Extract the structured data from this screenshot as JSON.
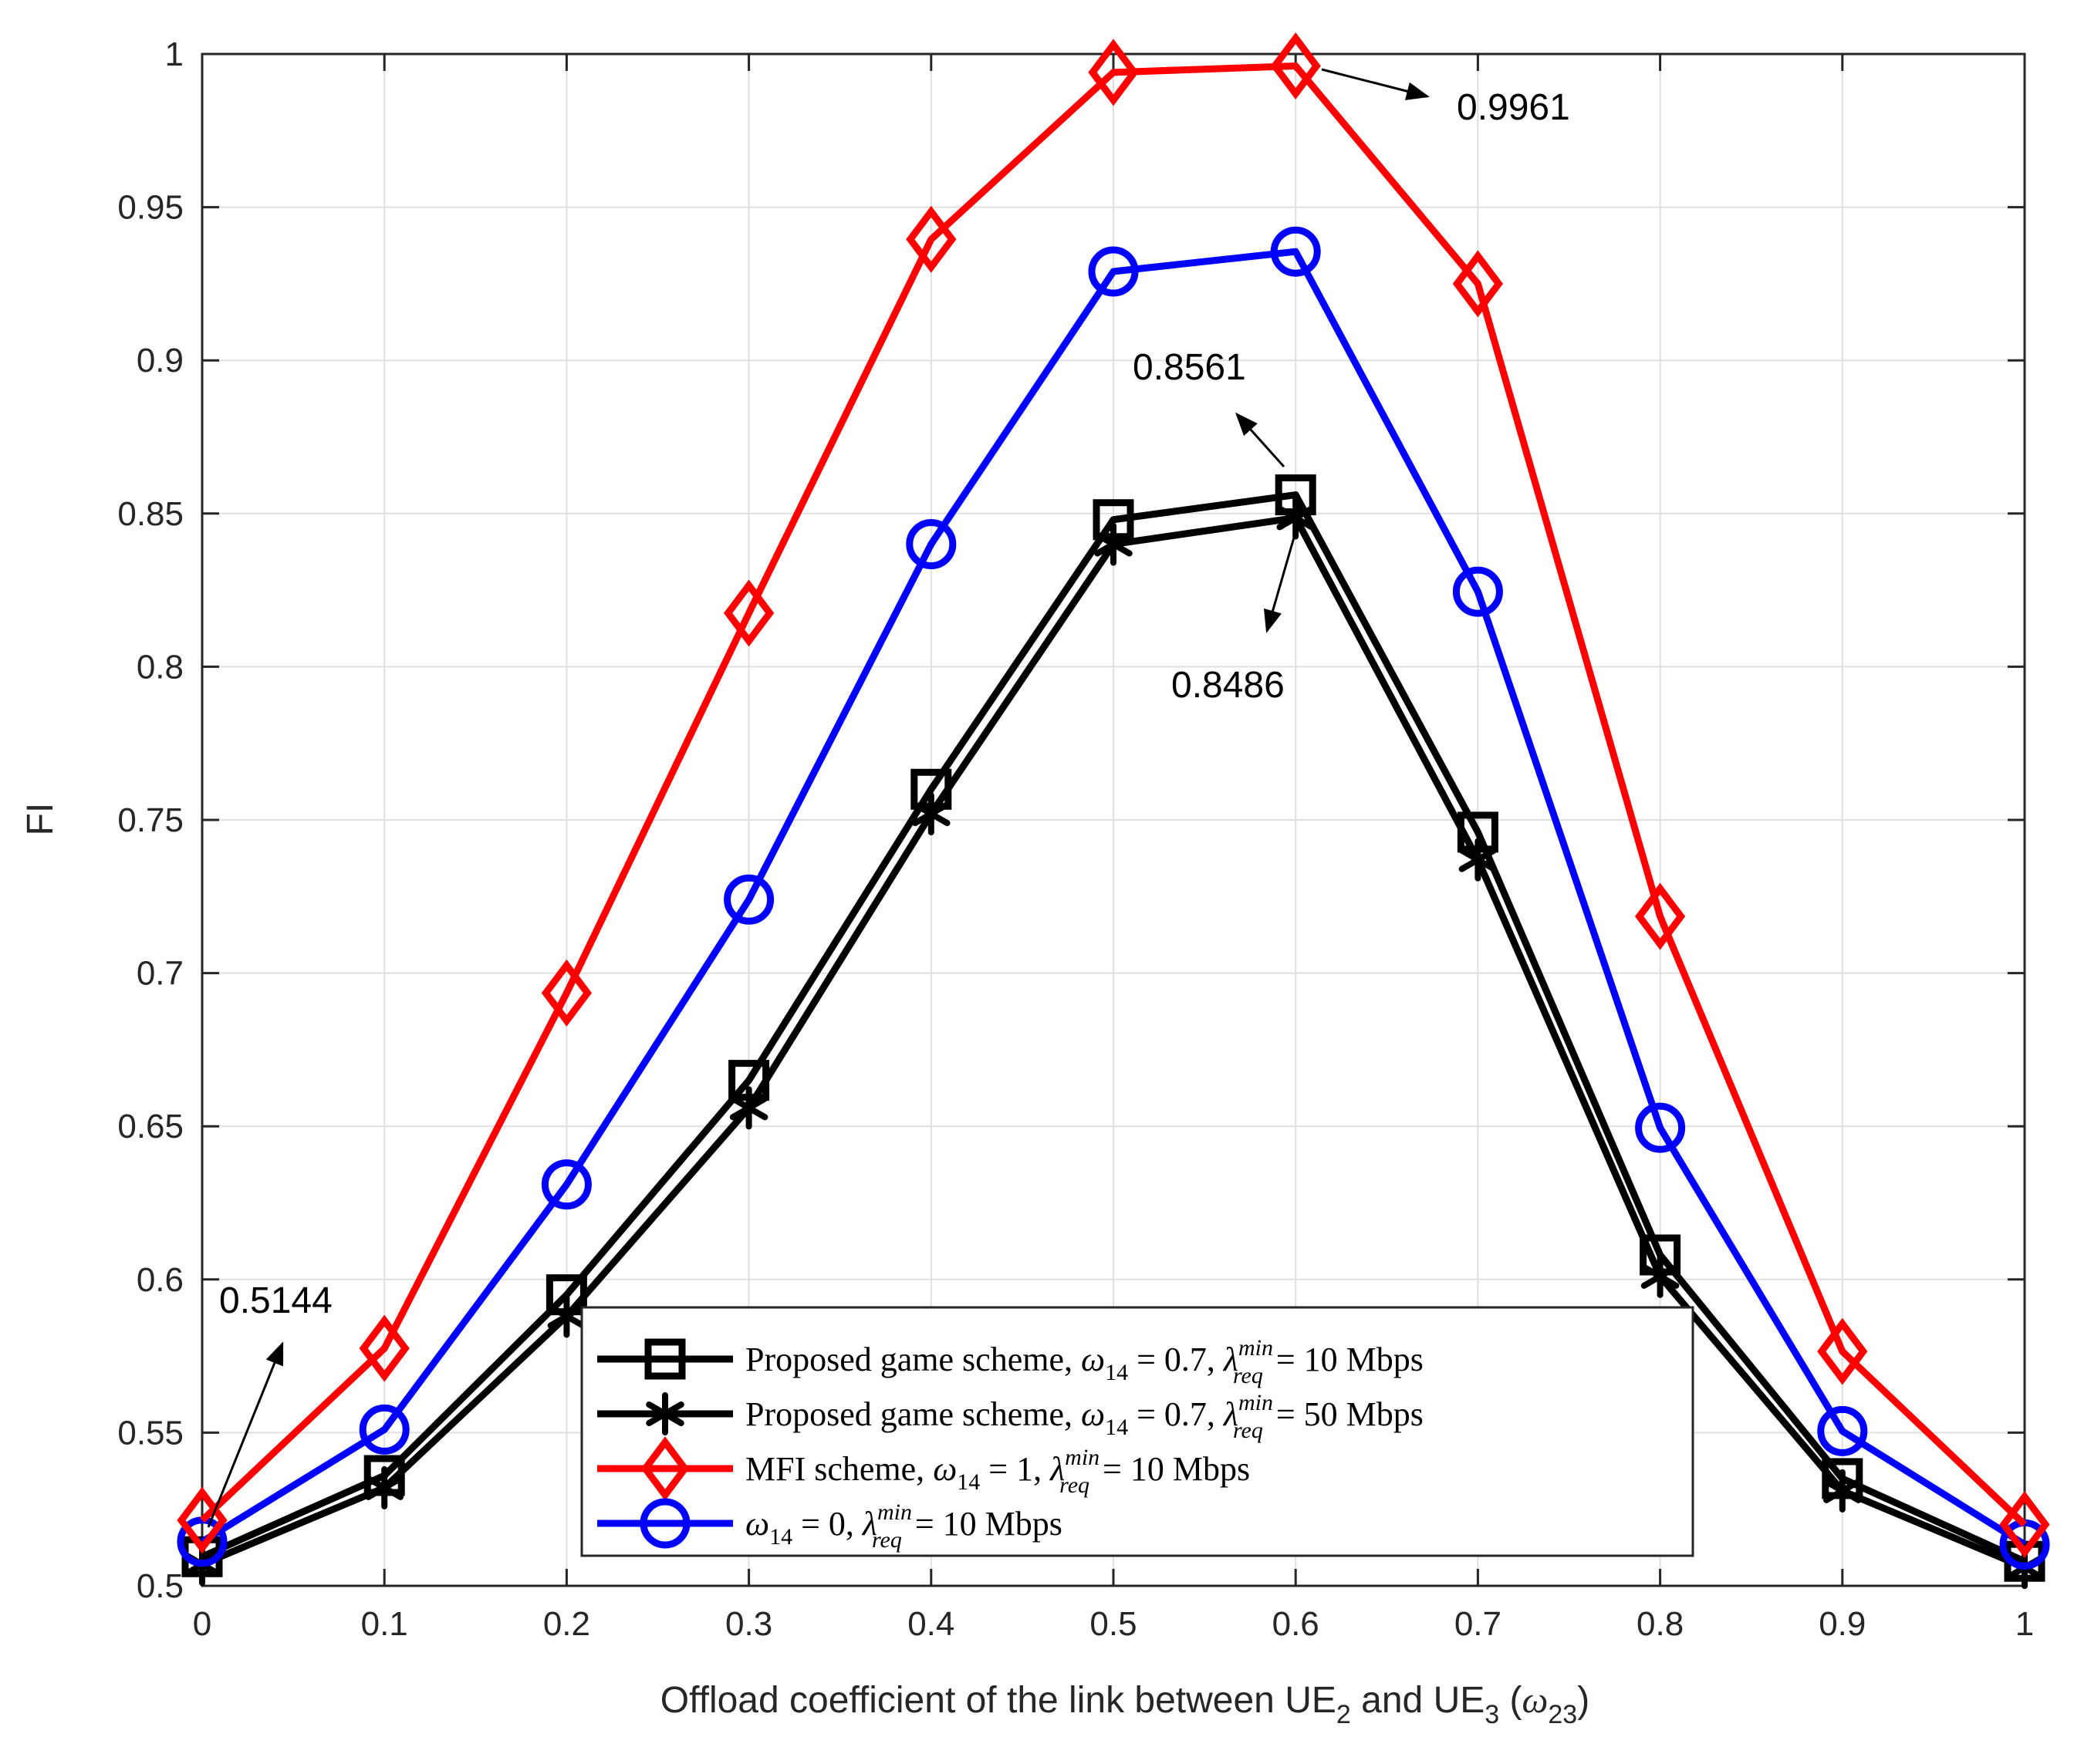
{
  "chart_data": {
    "type": "line",
    "xlabel": "Offload coefficient of the link between UE_2 and UE_3 (ω_23)",
    "xlabel_parts": {
      "main": "Offload coefficient of the link between UE",
      "sub1": "2",
      "mid": " and UE",
      "sub2": "3",
      "open": " (",
      "omega": "ω",
      "sub3": "23",
      "close": ")"
    },
    "ylabel": "FI",
    "xlim": [
      0,
      1
    ],
    "ylim": [
      0.5,
      1
    ],
    "grid": true,
    "x": [
      0,
      0.1,
      0.2,
      0.3,
      0.4,
      0.5,
      0.6,
      0.7,
      0.8,
      0.9,
      1
    ],
    "xticks": [
      "0",
      "0.1",
      "0.2",
      "0.3",
      "0.4",
      "0.5",
      "0.6",
      "0.7",
      "0.8",
      "0.9",
      "1"
    ],
    "yticks": [
      "0.5",
      "0.55",
      "0.6",
      "0.65",
      "0.7",
      "0.75",
      "0.8",
      "0.85",
      "0.9",
      "0.95",
      "1"
    ],
    "series": [
      {
        "name": "Proposed game scheme, ω14 = 0.7, λ_req^min = 10 Mbps",
        "legend": {
          "prefix": "Proposed game scheme, ",
          "w": "ω",
          "wsub": "14",
          "weq": " = 0.7, ",
          "l": "λ",
          "lsup": "min",
          "lsub": "req",
          "leq": " = 10 Mbps"
        },
        "color": "#000000",
        "marker": "square",
        "values": [
          0.5095,
          0.536,
          0.595,
          0.665,
          0.76,
          0.848,
          0.8561,
          0.746,
          0.608,
          0.535,
          0.508
        ]
      },
      {
        "name": "Proposed game scheme, ω14 = 0.7, λ_req^min = 50 Mbps",
        "legend": {
          "prefix": "Proposed game scheme, ",
          "w": "ω",
          "wsub": "14",
          "weq": " = 0.7, ",
          "l": "λ",
          "lsup": "min",
          "lsub": "req",
          "leq": " = 50 Mbps"
        },
        "color": "#000000",
        "marker": "asterisk",
        "values": [
          0.507,
          0.532,
          0.588,
          0.656,
          0.752,
          0.84,
          0.8486,
          0.737,
          0.601,
          0.531,
          0.506
        ]
      },
      {
        "name": "MFI scheme, ω14 = 1, λ_req^min = 10 Mbps",
        "legend": {
          "prefix": "MFI scheme, ",
          "w": "ω",
          "wsub": "14",
          "weq": " = 1, ",
          "l": "λ",
          "lsup": "min",
          "lsub": "req",
          "leq": " = 10 Mbps"
        },
        "color": "#ff0000",
        "marker": "diamond",
        "values": [
          0.5214,
          0.5775,
          0.6935,
          0.8175,
          0.9395,
          0.994,
          0.9961,
          0.925,
          0.7185,
          0.5765,
          0.52
        ]
      },
      {
        "name": "ω14 = 0, λ_req^min = 10 Mbps",
        "legend": {
          "prefix": "",
          "w": "ω",
          "wsub": "14",
          "weq": " = 0, ",
          "l": "λ",
          "lsup": "min",
          "lsub": "req",
          "leq": " = 10 Mbps"
        },
        "color": "#0000ff",
        "marker": "circle",
        "values": [
          0.5144,
          0.551,
          0.631,
          0.724,
          0.84,
          0.929,
          0.9355,
          0.8245,
          0.6495,
          0.5505,
          0.5135
        ]
      }
    ],
    "annotations": [
      {
        "text": "0.9961",
        "x": 0.6,
        "y": 0.9961
      },
      {
        "text": "0.8561",
        "x": 0.6,
        "y": 0.8561
      },
      {
        "text": "0.8486",
        "x": 0.6,
        "y": 0.8486
      },
      {
        "text": "0.5144",
        "x": 0,
        "y": 0.5144
      }
    ]
  }
}
